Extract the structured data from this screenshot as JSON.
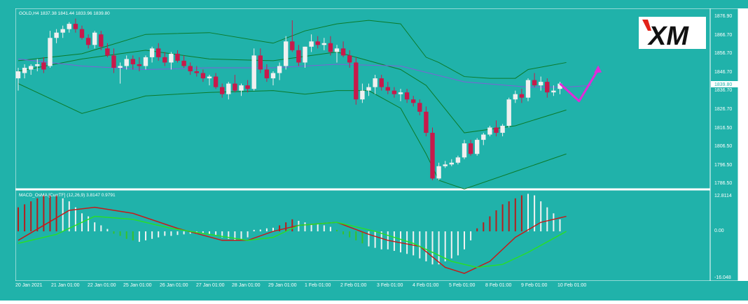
{
  "main_chart": {
    "header": "GOLD,H4  1837.38 1841.44 1833.96 1839.80",
    "price_labels": [
      "1876.90",
      "1866.70",
      "1856.70",
      "1846.70",
      "1839.80",
      "1836.70",
      "1826.70",
      "1816.50",
      "1806.50",
      "1796.50",
      "1786.50"
    ],
    "current_price": "1839.80",
    "logo_text": "XM"
  },
  "indicator": {
    "header": "MACD_OsMA [CurrTF] (12,26,9) 3.8147 0.9791",
    "level_labels": [
      "12.8114",
      "0.00",
      "-16.048"
    ]
  },
  "time_axis": {
    "labels": [
      "20 Jan 2021",
      "21 Jan 01:00",
      "22 Jan 01:00",
      "25 Jan 01:00",
      "26 Jan 01:00",
      "27 Jan 01:00",
      "28 Jan 01:00",
      "29 Jan 01:00",
      "1 Feb 01:00",
      "2 Feb 01:00",
      "3 Feb 01:00",
      "4 Feb 01:00",
      "5 Feb 01:00",
      "8 Feb 01:00",
      "9 Feb 01:00",
      "10 Feb 01:00"
    ]
  },
  "chart_data": [
    {
      "type": "candlestick",
      "title": "GOLD,H4",
      "ylim": [
        1781,
        1882
      ],
      "bull_color": "#f0f0f0",
      "bear_color": "#c8194b",
      "candles": [
        [
          1843,
          1849,
          1836,
          1847
        ],
        [
          1846,
          1851,
          1843,
          1849
        ],
        [
          1848,
          1851,
          1845,
          1850
        ],
        [
          1850,
          1854,
          1847,
          1851
        ],
        [
          1852,
          1855,
          1846,
          1848
        ],
        [
          1850,
          1870,
          1849,
          1866
        ],
        [
          1866,
          1871,
          1863,
          1869
        ],
        [
          1869,
          1873,
          1866,
          1871
        ],
        [
          1871,
          1875,
          1869,
          1874
        ],
        [
          1874,
          1877,
          1869,
          1871
        ],
        [
          1871,
          1873,
          1865,
          1866
        ],
        [
          1866,
          1868,
          1860,
          1862
        ],
        [
          1862,
          1870,
          1860,
          1869
        ],
        [
          1868,
          1870,
          1859,
          1861
        ],
        [
          1860,
          1863,
          1855,
          1856
        ],
        [
          1856,
          1860,
          1846,
          1849
        ],
        [
          1849,
          1852,
          1840,
          1850
        ],
        [
          1850,
          1856,
          1848,
          1854
        ],
        [
          1854,
          1856,
          1848,
          1851
        ],
        [
          1851,
          1855,
          1847,
          1850
        ],
        [
          1850,
          1856,
          1848,
          1855
        ],
        [
          1855,
          1861,
          1852,
          1860
        ],
        [
          1860,
          1863,
          1853,
          1855
        ],
        [
          1855,
          1858,
          1850,
          1852
        ],
        [
          1852,
          1858,
          1848,
          1857
        ],
        [
          1857,
          1859,
          1852,
          1853
        ],
        [
          1853,
          1856,
          1849,
          1850
        ],
        [
          1850,
          1852,
          1845,
          1847
        ],
        [
          1847,
          1850,
          1844,
          1846
        ],
        [
          1846,
          1848,
          1841,
          1843
        ],
        [
          1843,
          1845,
          1839,
          1844
        ],
        [
          1844,
          1846,
          1837,
          1838
        ],
        [
          1838,
          1840,
          1832,
          1834
        ],
        [
          1834,
          1841,
          1831,
          1840
        ],
        [
          1840,
          1845,
          1835,
          1836
        ],
        [
          1836,
          1840,
          1833,
          1839
        ],
        [
          1839,
          1842,
          1835,
          1837
        ],
        [
          1837,
          1860,
          1836,
          1856
        ],
        [
          1856,
          1860,
          1846,
          1848
        ],
        [
          1848,
          1851,
          1841,
          1843
        ],
        [
          1843,
          1847,
          1839,
          1846
        ],
        [
          1846,
          1852,
          1842,
          1850
        ],
        [
          1850,
          1867,
          1848,
          1864
        ],
        [
          1864,
          1876,
          1858,
          1859
        ],
        [
          1859,
          1862,
          1850,
          1852
        ],
        [
          1852,
          1861,
          1849,
          1861
        ],
        [
          1861,
          1868,
          1858,
          1864
        ],
        [
          1864,
          1867,
          1860,
          1862
        ],
        [
          1862,
          1866,
          1859,
          1863
        ],
        [
          1863,
          1867,
          1856,
          1858
        ],
        [
          1858,
          1862,
          1852,
          1860
        ],
        [
          1860,
          1864,
          1855,
          1856
        ],
        [
          1856,
          1859,
          1849,
          1852
        ],
        [
          1852,
          1855,
          1828,
          1831
        ],
        [
          1831,
          1840,
          1829,
          1836
        ],
        [
          1836,
          1840,
          1833,
          1838
        ],
        [
          1838,
          1845,
          1834,
          1843
        ],
        [
          1843,
          1845,
          1836,
          1838
        ],
        [
          1838,
          1841,
          1834,
          1836
        ],
        [
          1836,
          1838,
          1832,
          1834
        ],
        [
          1834,
          1837,
          1830,
          1835
        ],
        [
          1835,
          1837,
          1829,
          1831
        ],
        [
          1831,
          1833,
          1827,
          1829
        ],
        [
          1829,
          1831,
          1822,
          1824
        ],
        [
          1824,
          1827,
          1810,
          1812
        ],
        [
          1812,
          1815,
          1785,
          1786
        ],
        [
          1786,
          1795,
          1785,
          1793
        ],
        [
          1793,
          1796,
          1792,
          1794
        ],
        [
          1794,
          1797,
          1793,
          1795
        ],
        [
          1795,
          1799,
          1794,
          1798
        ],
        [
          1798,
          1808,
          1797,
          1806
        ],
        [
          1806,
          1808,
          1799,
          1800
        ],
        [
          1800,
          1809,
          1799,
          1808
        ],
        [
          1808,
          1812,
          1805,
          1811
        ],
        [
          1811,
          1816,
          1810,
          1815
        ],
        [
          1815,
          1819,
          1810,
          1812
        ],
        [
          1812,
          1817,
          1810,
          1816
        ],
        [
          1816,
          1832,
          1815,
          1831
        ],
        [
          1831,
          1836,
          1829,
          1834
        ],
        [
          1834,
          1837,
          1829,
          1832
        ],
        [
          1832,
          1843,
          1830,
          1842
        ],
        [
          1842,
          1846,
          1838,
          1839
        ],
        [
          1839,
          1844,
          1836,
          1841
        ],
        [
          1841,
          1843,
          1832,
          1835
        ],
        [
          1835,
          1839,
          1833,
          1836
        ],
        [
          1837,
          1841,
          1834,
          1840
        ]
      ],
      "overlays": [
        {
          "name": "upper band",
          "color": "#0b7a2a",
          "x": [
            0,
            10,
            20,
            30,
            40,
            45,
            50,
            55,
            60,
            64,
            66,
            70,
            74,
            78,
            80,
            83,
            86
          ],
          "values": [
            1853,
            1857,
            1868,
            1869,
            1863,
            1870,
            1874,
            1876,
            1874,
            1855,
            1852,
            1844,
            1843,
            1843,
            1848,
            1850,
            1852
          ]
        },
        {
          "name": "middle band",
          "color": "#0b7a2a",
          "x": [
            0,
            10,
            20,
            30,
            40,
            50,
            60,
            64,
            70,
            78,
            86
          ],
          "values": [
            1847,
            1854,
            1859,
            1854,
            1853,
            1858,
            1848,
            1839,
            1812,
            1816,
            1825
          ]
        },
        {
          "name": "lower band",
          "color": "#0b7a2a",
          "x": [
            0,
            10,
            20,
            30,
            40,
            45,
            50,
            55,
            60,
            64,
            66,
            70,
            78,
            86
          ],
          "values": [
            1840,
            1823,
            1833,
            1835,
            1836,
            1834,
            1836,
            1836,
            1826,
            1800,
            1785,
            1780,
            1790,
            1800
          ]
        },
        {
          "name": "moving average",
          "color": "#7f5fd8",
          "x": [
            0,
            10,
            20,
            30,
            40,
            50,
            60,
            70,
            80,
            86,
            90
          ],
          "values": [
            1854,
            1850,
            1848,
            1849,
            1849,
            1851,
            1850,
            1841,
            1838,
            1838,
            1839
          ]
        }
      ],
      "projection_arrow": {
        "color": "#e22ad8",
        "x": [
          85,
          88,
          91
        ],
        "values": [
          1840,
          1830,
          1848
        ]
      }
    },
    {
      "type": "bar",
      "title": "MACD_OsMA [CurrTF] (12,26,9)",
      "ylim": [
        -16.048,
        12.8114
      ],
      "up_color": "#b71c1c",
      "down_color": "#f2f2f2",
      "green_color": "#35c22b",
      "histogram": [
        [
          8,
          "red"
        ],
        [
          9,
          "red"
        ],
        [
          10,
          "red"
        ],
        [
          11,
          "red"
        ],
        [
          12,
          "red"
        ],
        [
          12,
          "red"
        ],
        [
          12,
          "red"
        ],
        [
          11,
          "white"
        ],
        [
          10,
          "white"
        ],
        [
          8,
          "white"
        ],
        [
          6,
          "white"
        ],
        [
          5,
          "white"
        ],
        [
          3,
          "white"
        ],
        [
          2,
          "white"
        ],
        [
          0.8,
          "white"
        ],
        [
          -0.8,
          "green"
        ],
        [
          -1.5,
          "green"
        ],
        [
          -2.5,
          "green"
        ],
        [
          -3,
          "green"
        ],
        [
          -3.5,
          "white"
        ],
        [
          -3,
          "white"
        ],
        [
          -2.5,
          "white"
        ],
        [
          -2,
          "white"
        ],
        [
          -1.5,
          "white"
        ],
        [
          -1.5,
          "white"
        ],
        [
          -1.2,
          "white"
        ],
        [
          -1,
          "white"
        ],
        [
          -0.8,
          "white"
        ],
        [
          -0.8,
          "white"
        ],
        [
          -0.8,
          "white"
        ],
        [
          -1,
          "white"
        ],
        [
          -1.5,
          "white"
        ],
        [
          -2,
          "white"
        ],
        [
          -2.5,
          "white"
        ],
        [
          -3,
          "white"
        ],
        [
          -2.5,
          "white"
        ],
        [
          -2,
          "white"
        ],
        [
          0.5,
          "white"
        ],
        [
          0.6,
          "white"
        ],
        [
          1,
          "white"
        ],
        [
          1.2,
          "white"
        ],
        [
          2,
          "red"
        ],
        [
          3,
          "red"
        ],
        [
          4,
          "red"
        ],
        [
          3.5,
          "white"
        ],
        [
          3,
          "white"
        ],
        [
          2.5,
          "white"
        ],
        [
          2.5,
          "white"
        ],
        [
          2,
          "white"
        ],
        [
          1.5,
          "white"
        ],
        [
          0.5,
          "green"
        ],
        [
          -1,
          "green"
        ],
        [
          -2,
          "green"
        ],
        [
          -3,
          "green"
        ],
        [
          -4,
          "green"
        ],
        [
          -5,
          "white"
        ],
        [
          -5.5,
          "white"
        ],
        [
          -6,
          "white"
        ],
        [
          -6,
          "white"
        ],
        [
          -6.5,
          "white"
        ],
        [
          -7,
          "white"
        ],
        [
          -7.5,
          "white"
        ],
        [
          -8,
          "white"
        ],
        [
          -9,
          "white"
        ],
        [
          -10,
          "white"
        ],
        [
          -11,
          "white"
        ],
        [
          -11,
          "white"
        ],
        [
          -10,
          "white"
        ],
        [
          -9,
          "white"
        ],
        [
          -8,
          "white"
        ],
        [
          -6,
          "white"
        ],
        [
          -3,
          "white"
        ],
        [
          1,
          "red"
        ],
        [
          3,
          "red"
        ],
        [
          5,
          "red"
        ],
        [
          7,
          "red"
        ],
        [
          9,
          "red"
        ],
        [
          10,
          "red"
        ],
        [
          11,
          "red"
        ],
        [
          12,
          "red"
        ],
        [
          12.5,
          "white"
        ],
        [
          12,
          "white"
        ],
        [
          10,
          "white"
        ],
        [
          8,
          "white"
        ],
        [
          6,
          "white"
        ],
        [
          4,
          "white"
        ]
      ],
      "lines": [
        {
          "name": "red line",
          "color": "#c61a1a",
          "x": [
            0,
            4,
            8,
            12,
            18,
            25,
            32,
            36,
            40,
            44,
            50,
            55,
            58,
            63,
            67,
            70,
            74,
            78,
            82,
            86
          ],
          "values": [
            -3,
            2,
            7,
            8,
            6,
            1,
            -3,
            -3,
            0,
            2,
            3,
            -1,
            -3,
            -5,
            -12,
            -14,
            -10,
            -2,
            3,
            5
          ]
        },
        {
          "name": "green line",
          "color": "#28dd2a",
          "x": [
            0,
            6,
            12,
            18,
            24,
            30,
            36,
            40,
            44,
            50,
            56,
            62,
            68,
            72,
            76,
            80,
            86
          ],
          "values": [
            -4,
            -1,
            5,
            4,
            1,
            -1,
            -3,
            -2,
            2,
            3,
            0,
            -4,
            -10,
            -12,
            -11,
            -7,
            0
          ]
        }
      ]
    }
  ]
}
